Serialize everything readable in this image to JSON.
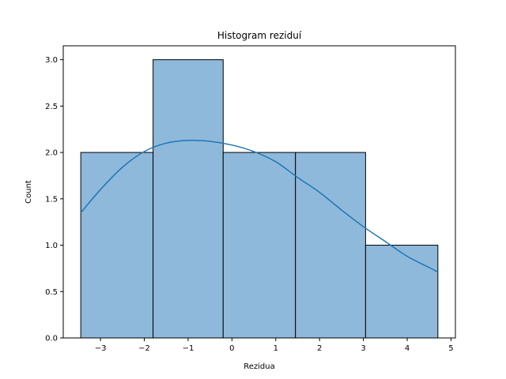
{
  "chart_data": {
    "type": "bar",
    "title": "Histogram reziduí",
    "xlabel": "Rezidua",
    "ylabel": "Count",
    "bins": [
      {
        "x0": -3.45,
        "x1": -1.8,
        "count": 2
      },
      {
        "x0": -1.8,
        "x1": -0.2,
        "count": 3
      },
      {
        "x0": -0.2,
        "x1": 1.45,
        "count": 2
      },
      {
        "x0": 1.45,
        "x1": 3.05,
        "count": 2
      },
      {
        "x0": 3.05,
        "x1": 4.7,
        "count": 1
      }
    ],
    "kde": {
      "x": [
        -3.45,
        -3.0,
        -2.5,
        -2.0,
        -1.5,
        -1.0,
        -0.5,
        0.0,
        0.5,
        1.0,
        1.5,
        2.0,
        2.5,
        3.0,
        3.5,
        4.0,
        4.5,
        4.7
      ],
      "y": [
        1.35,
        1.6,
        1.84,
        2.01,
        2.1,
        2.13,
        2.12,
        2.08,
        2.01,
        1.9,
        1.73,
        1.57,
        1.38,
        1.2,
        1.04,
        0.88,
        0.76,
        0.71
      ]
    },
    "xlim": [
      -3.85,
      5.1
    ],
    "ylim": [
      0,
      3.15
    ],
    "xticks": [
      -3,
      -2,
      -1,
      0,
      1,
      2,
      3,
      4,
      5
    ],
    "xtick_labels": [
      "−3",
      "−2",
      "−1",
      "0",
      "1",
      "2",
      "3",
      "4",
      "5"
    ],
    "yticks": [
      0.0,
      0.5,
      1.0,
      1.5,
      2.0,
      2.5,
      3.0
    ],
    "ytick_labels": [
      "0.0",
      "0.5",
      "1.0",
      "1.5",
      "2.0",
      "2.5",
      "3.0"
    ],
    "grid": false,
    "bar_color": "#8fb9db",
    "line_color": "#1f77b4"
  }
}
